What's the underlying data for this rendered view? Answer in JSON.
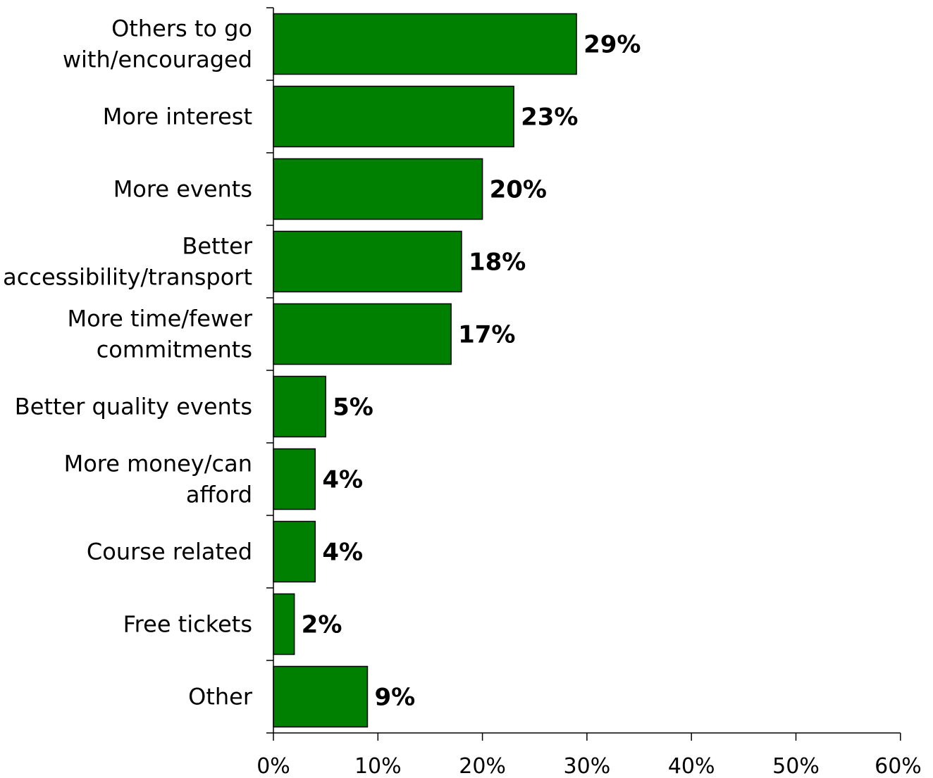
{
  "chart_data": {
    "type": "bar",
    "orientation": "horizontal",
    "categories": [
      [
        "Others to go",
        "with/encouraged"
      ],
      [
        "More interest"
      ],
      [
        "More events"
      ],
      [
        "Better",
        "accessibility/transport"
      ],
      [
        "More time/fewer",
        "commitments"
      ],
      [
        "Better quality events"
      ],
      [
        "More money/can",
        "afford"
      ],
      [
        "Course related"
      ],
      [
        "Free tickets"
      ],
      [
        "Other"
      ]
    ],
    "values": [
      29,
      23,
      20,
      18,
      17,
      5,
      4,
      4,
      2,
      9
    ],
    "data_labels": [
      "29%",
      "23%",
      "20%",
      "18%",
      "17%",
      "5%",
      "4%",
      "4%",
      "2%",
      "9%"
    ],
    "xlim": [
      0,
      60
    ],
    "xticks": [
      0,
      10,
      20,
      30,
      40,
      50,
      60
    ],
    "xtick_labels": [
      "0%",
      "10%",
      "20%",
      "30%",
      "40%",
      "50%",
      "60%"
    ],
    "title": "",
    "xlabel": "",
    "ylabel": "",
    "grid": false,
    "bar_color": "#008000"
  }
}
